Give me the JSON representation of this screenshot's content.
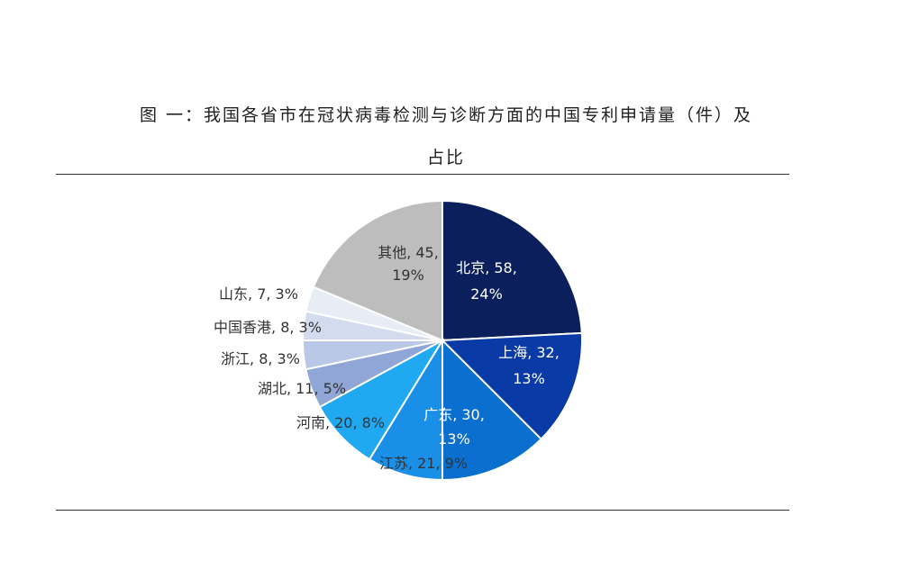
{
  "title_line1": "图 一：我国各省市在冠状病毒检测与诊断方面的中国专利申请量（件）及",
  "title_line2": "占比",
  "chart_data": {
    "type": "pie",
    "title": "图 一：我国各省市在冠状病毒检测与诊断方面的中国专利申请量（件）及占比",
    "slices": [
      {
        "name": "北京",
        "value": 58,
        "percent": "24%",
        "color": "#0b1f5c",
        "label_color": "#ffffff",
        "label": "北京, 58,",
        "label2": "24%"
      },
      {
        "name": "上海",
        "value": 32,
        "percent": "13%",
        "color": "#0a3aa6",
        "label_color": "#ffffff",
        "label": "上海, 32,",
        "label2": "13%"
      },
      {
        "name": "广东",
        "value": 30,
        "percent": "13%",
        "color": "#0a6fcf",
        "label_color": "#ffffff",
        "label": "广东, 30,",
        "label2": "13%"
      },
      {
        "name": "江苏",
        "value": 21,
        "percent": "9%",
        "color": "#1a8fe8",
        "label_color": "#333333",
        "label": "江苏, 21, 9%",
        "label2": ""
      },
      {
        "name": "河南",
        "value": 20,
        "percent": "8%",
        "color": "#20a8f0",
        "label_color": "#333333",
        "label": "河南, 20, 8%",
        "label2": ""
      },
      {
        "name": "湖北",
        "value": 11,
        "percent": "5%",
        "color": "#8fa6d6",
        "label_color": "#333333",
        "label": "湖北, 11, 5%",
        "label2": ""
      },
      {
        "name": "浙江",
        "value": 8,
        "percent": "3%",
        "color": "#b8c8e6",
        "label_color": "#333333",
        "label": "浙江, 8, 3%",
        "label2": ""
      },
      {
        "name": "中国香港",
        "value": 8,
        "percent": "3%",
        "color": "#d3dcee",
        "label_color": "#333333",
        "label": "中国香港, 8, 3%",
        "label2": ""
      },
      {
        "name": "山东",
        "value": 7,
        "percent": "3%",
        "color": "#e8ecf4",
        "label_color": "#333333",
        "label": "山东, 7, 3%",
        "label2": ""
      },
      {
        "name": "其他",
        "value": 45,
        "percent": "19%",
        "color": "#bdbdbd",
        "label_color": "#333333",
        "label": "其他, 45,",
        "label2": "19%"
      }
    ]
  }
}
